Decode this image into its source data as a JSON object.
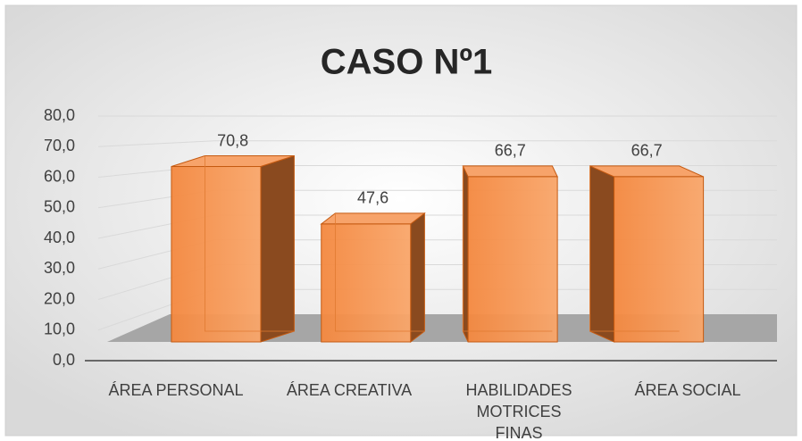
{
  "chart_data": {
    "type": "bar3d",
    "title": "CASO Nº1",
    "categories": [
      "ÁREA PERSONAL",
      "ÁREA CREATIVA",
      "HABILIDADES MOTRICES FINAS",
      "ÁREA SOCIAL"
    ],
    "values": [
      70.8,
      47.6,
      66.7,
      66.7
    ],
    "value_labels": [
      "70,8",
      "47,6",
      "66,7",
      "66,7"
    ],
    "color": "#f79646",
    "ylim": [
      0,
      80
    ],
    "yticks": [
      {
        "value": 0,
        "label": "0,0"
      },
      {
        "value": 10,
        "label": "10,0"
      },
      {
        "value": 20,
        "label": "20,0"
      },
      {
        "value": 30,
        "label": "30,0"
      },
      {
        "value": 40,
        "label": "40,0"
      },
      {
        "value": 50,
        "label": "50,0"
      },
      {
        "value": 60,
        "label": "60,0"
      },
      {
        "value": 70,
        "label": "70,0"
      },
      {
        "value": 80,
        "label": "80,0"
      }
    ],
    "grid": true
  }
}
